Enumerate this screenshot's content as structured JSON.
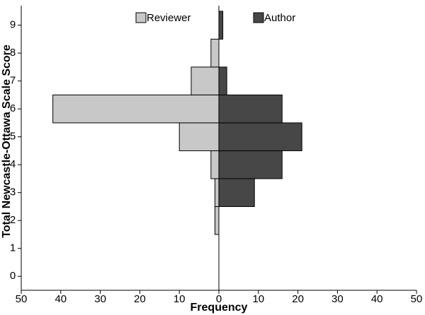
{
  "chart_data": {
    "type": "pyramid",
    "xlabel": "Frequency",
    "ylabel": "Total Newcastle-Ottawa Scale Score",
    "categories": [
      0,
      1,
      2,
      3,
      4,
      5,
      6,
      7,
      8,
      9
    ],
    "series": [
      {
        "name": "Reviewer",
        "color": "#c8c8c8",
        "values": [
          0,
          0,
          1,
          1,
          2,
          10,
          42,
          7,
          2,
          0
        ]
      },
      {
        "name": "Author",
        "color": "#474747",
        "values": [
          0,
          0,
          0,
          9,
          16,
          21,
          16,
          2,
          0,
          1
        ]
      }
    ],
    "xlim": [
      -50,
      50
    ],
    "xticks": [
      {
        "value": -50,
        "label": "50"
      },
      {
        "value": -40,
        "label": "40"
      },
      {
        "value": -30,
        "label": "30"
      },
      {
        "value": -20,
        "label": "20"
      },
      {
        "value": -10,
        "label": "10"
      },
      0,
      10,
      20,
      30,
      40,
      50
    ],
    "ylim": [
      -0.5,
      9.7
    ],
    "yticks": [
      0,
      1,
      2,
      3,
      4,
      5,
      6,
      7,
      8,
      9
    ],
    "legend": "top"
  }
}
